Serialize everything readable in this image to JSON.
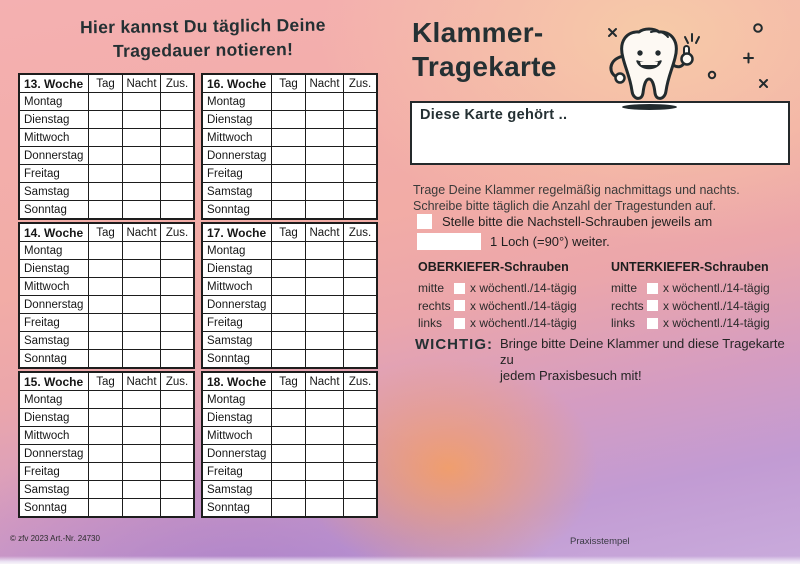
{
  "headline": {
    "line1": "Hier kannst Du täglich Deine",
    "line2": "Tragedauer notieren!"
  },
  "week_tables": {
    "weeks": [
      "13. Woche",
      "14. Woche",
      "15. Woche",
      "16. Woche",
      "17. Woche",
      "18. Woche"
    ],
    "columns": [
      "Tag",
      "Nacht",
      "Zus."
    ],
    "days": [
      "Montag",
      "Dienstag",
      "Mittwoch",
      "Donnerstag",
      "Freitag",
      "Samstag",
      "Sonntag"
    ],
    "entry_value": ""
  },
  "title": {
    "line1": "Klammer-",
    "line2": "Tragekarte"
  },
  "mascot": {
    "icon": "tooth-mascot",
    "decorations": [
      "x-mark",
      "circle-mark",
      "plus-mark",
      "sparkles"
    ]
  },
  "belongs_box": {
    "label": "Diese Karte gehört ..",
    "value": ""
  },
  "instructions": {
    "line1": "Trage Deine Klammer regelmäßig nachmittags und nachts.",
    "line2": "Schreibe bitte täglich die Anzahl der Tragestunden auf."
  },
  "screw_note": {
    "line1": "Stelle bitte die Nachstell-Schrauben jeweils am",
    "line2": "1 Loch (=90°) weiter.",
    "checkbox_checked": false,
    "interval_value": ""
  },
  "oberkiefer": {
    "title": "OBERKIEFER-Schrauben",
    "rows": [
      {
        "label": "mitte",
        "option": "x wöchentl./14-tägig"
      },
      {
        "label": "rechts",
        "option": "x wöchentl./14-tägig"
      },
      {
        "label": "links",
        "option": "x wöchentl./14-tägig"
      }
    ]
  },
  "unterkiefer": {
    "title": "UNTERKIEFER-Schrauben",
    "rows": [
      {
        "label": "mitte",
        "option": "x wöchentl./14-tägig"
      },
      {
        "label": "rechts",
        "option": "x wöchentl./14-tägig"
      },
      {
        "label": "links",
        "option": "x wöchentl./14-tägig"
      }
    ]
  },
  "wichtig": {
    "label": "WICHTIG:",
    "line1": "Bringe bitte Deine Klammer und diese Tragekarte zu",
    "line2": "jedem Praxisbesuch mit!"
  },
  "footer": {
    "copyright": "© zfv 2023 Art.-Nr. 24730",
    "stamp_label": "Praxisstempel"
  },
  "colors": {
    "bg_pink": "#f4b0b1",
    "bg_peach": "#f7cca8",
    "bg_purple": "#c29bd3",
    "bg_orange_glow": "#f69e5e",
    "ink": "#243033",
    "table_border": "#1d1d1d",
    "paper": "#ffffff"
  }
}
